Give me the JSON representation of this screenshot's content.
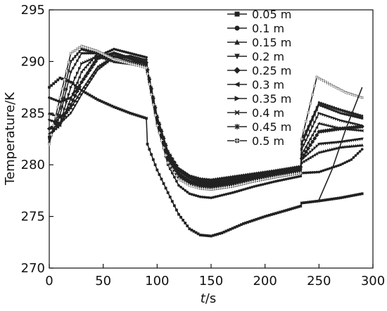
{
  "chart_data": {
    "type": "line",
    "xlabel_italic": "t",
    "xlabel_unit": "/s",
    "ylabel": "Temperature/K",
    "xlim": [
      0,
      300
    ],
    "ylim": [
      270,
      295
    ],
    "xticks": [
      0,
      50,
      100,
      150,
      200,
      250,
      300
    ],
    "yticks": [
      270,
      275,
      280,
      285,
      290,
      295
    ],
    "grid": false,
    "legend_position": "top-right",
    "line_color": "#222222",
    "series": [
      {
        "name": "0.05 m",
        "marker": "square",
        "points": [
          [
            0,
            287.5
          ],
          [
            10,
            288.4
          ],
          [
            20,
            288
          ],
          [
            30,
            287.2
          ],
          [
            45,
            286.3
          ],
          [
            60,
            285.6
          ],
          [
            75,
            285
          ],
          [
            90,
            284.5
          ],
          [
            91,
            282
          ],
          [
            100,
            279.5
          ],
          [
            110,
            277.3
          ],
          [
            120,
            275.2
          ],
          [
            130,
            273.8
          ],
          [
            140,
            273.2
          ],
          [
            150,
            273.1
          ],
          [
            160,
            273.4
          ],
          [
            180,
            274.3
          ],
          [
            200,
            275
          ],
          [
            220,
            275.6
          ],
          [
            233,
            276
          ],
          [
            234,
            276.3
          ],
          [
            250,
            276.5
          ],
          [
            270,
            276.8
          ],
          [
            290,
            277.2
          ]
        ]
      },
      {
        "name": "0.1 m",
        "marker": "circle",
        "points": [
          [
            0,
            286.5
          ],
          [
            10,
            286.1
          ],
          [
            20,
            286.5
          ],
          [
            30,
            288
          ],
          [
            45,
            290.5
          ],
          [
            60,
            291.2
          ],
          [
            75,
            290.8
          ],
          [
            90,
            290.4
          ],
          [
            91,
            289
          ],
          [
            100,
            284
          ],
          [
            110,
            280
          ],
          [
            120,
            278
          ],
          [
            130,
            277.2
          ],
          [
            140,
            276.9
          ],
          [
            150,
            276.8
          ],
          [
            170,
            277.3
          ],
          [
            190,
            277.9
          ],
          [
            210,
            278.4
          ],
          [
            233,
            278.9
          ],
          [
            234,
            279.2
          ],
          [
            250,
            279.3
          ],
          [
            270,
            280
          ],
          [
            280,
            280.5
          ],
          [
            290,
            281.5
          ]
        ]
      },
      {
        "name": "0.15 m",
        "marker": "triangle-up",
        "points": [
          [
            0,
            285
          ],
          [
            10,
            284.6
          ],
          [
            20,
            285.5
          ],
          [
            30,
            287.2
          ],
          [
            45,
            289.5
          ],
          [
            60,
            290.5
          ],
          [
            75,
            290.4
          ],
          [
            90,
            289.8
          ],
          [
            91,
            289
          ],
          [
            100,
            284.5
          ],
          [
            110,
            281
          ],
          [
            120,
            279.2
          ],
          [
            130,
            278.4
          ],
          [
            140,
            278.1
          ],
          [
            150,
            278
          ],
          [
            170,
            278.3
          ],
          [
            190,
            278.8
          ],
          [
            210,
            279.2
          ],
          [
            233,
            279.6
          ],
          [
            234,
            280.2
          ],
          [
            250,
            281.2
          ],
          [
            270,
            281.7
          ],
          [
            290,
            281.9
          ]
        ]
      },
      {
        "name": "0.2 m",
        "marker": "triangle-down",
        "points": [
          [
            0,
            284.3
          ],
          [
            10,
            284
          ],
          [
            20,
            285
          ],
          [
            30,
            286.8
          ],
          [
            45,
            289.2
          ],
          [
            60,
            290.4
          ],
          [
            75,
            290.5
          ],
          [
            90,
            290.1
          ],
          [
            91,
            289.3
          ],
          [
            100,
            284.7
          ],
          [
            110,
            281.3
          ],
          [
            120,
            279.5
          ],
          [
            130,
            278.7
          ],
          [
            140,
            278.3
          ],
          [
            150,
            278.2
          ],
          [
            170,
            278.5
          ],
          [
            190,
            279
          ],
          [
            210,
            279.3
          ],
          [
            233,
            279.7
          ],
          [
            234,
            280.5
          ],
          [
            250,
            282
          ],
          [
            270,
            282.2
          ],
          [
            290,
            282.5
          ]
        ]
      },
      {
        "name": "0.25 m",
        "marker": "diamond",
        "points": [
          [
            0,
            283.5
          ],
          [
            10,
            284
          ],
          [
            20,
            285.8
          ],
          [
            30,
            288
          ],
          [
            45,
            290.3
          ],
          [
            60,
            290.8
          ],
          [
            75,
            290.3
          ],
          [
            90,
            289.9
          ],
          [
            91,
            289.2
          ],
          [
            100,
            284.6
          ],
          [
            110,
            281.2
          ],
          [
            120,
            279.6
          ],
          [
            130,
            278.9
          ],
          [
            140,
            278.6
          ],
          [
            150,
            278.5
          ],
          [
            170,
            278.8
          ],
          [
            190,
            279.1
          ],
          [
            210,
            279.4
          ],
          [
            233,
            279.8
          ],
          [
            234,
            280.6
          ],
          [
            250,
            283.2
          ],
          [
            270,
            283.5
          ],
          [
            290,
            283.7
          ]
        ]
      },
      {
        "name": "0.3 m",
        "marker": "triangle-left",
        "points": [
          [
            0,
            283
          ],
          [
            10,
            283.8
          ],
          [
            20,
            286.4
          ],
          [
            30,
            289
          ],
          [
            45,
            290.8
          ],
          [
            60,
            290.5
          ],
          [
            75,
            290
          ],
          [
            90,
            289.8
          ],
          [
            91,
            289.1
          ],
          [
            100,
            284.4
          ],
          [
            110,
            281
          ],
          [
            120,
            279.4
          ],
          [
            130,
            278.7
          ],
          [
            140,
            278.4
          ],
          [
            150,
            278.3
          ],
          [
            170,
            278.6
          ],
          [
            190,
            279
          ],
          [
            210,
            279.3
          ],
          [
            233,
            279.7
          ],
          [
            234,
            281
          ],
          [
            250,
            284
          ],
          [
            270,
            283.5
          ],
          [
            290,
            283.3
          ]
        ]
      },
      {
        "name": "0.35 m",
        "marker": "triangle-right",
        "points": [
          [
            0,
            282.7
          ],
          [
            10,
            284
          ],
          [
            20,
            287.5
          ],
          [
            30,
            289.8
          ],
          [
            45,
            290.5
          ],
          [
            60,
            290
          ],
          [
            75,
            289.8
          ],
          [
            90,
            289.6
          ],
          [
            91,
            289
          ],
          [
            100,
            284.3
          ],
          [
            110,
            280.8
          ],
          [
            120,
            279.2
          ],
          [
            130,
            278.5
          ],
          [
            140,
            278.2
          ],
          [
            150,
            278.1
          ],
          [
            170,
            278.4
          ],
          [
            190,
            278.9
          ],
          [
            210,
            279.2
          ],
          [
            233,
            279.6
          ],
          [
            234,
            281.5
          ],
          [
            250,
            285
          ],
          [
            270,
            284.3
          ],
          [
            290,
            283.8
          ]
        ]
      },
      {
        "name": "0.4 m",
        "marker": "cross",
        "points": [
          [
            0,
            282.5
          ],
          [
            10,
            284.8
          ],
          [
            20,
            289
          ],
          [
            30,
            290.8
          ],
          [
            45,
            290.8
          ],
          [
            60,
            290
          ],
          [
            75,
            289.8
          ],
          [
            90,
            289.6
          ],
          [
            91,
            289
          ],
          [
            100,
            284.1
          ],
          [
            110,
            280.6
          ],
          [
            120,
            279
          ],
          [
            130,
            278.3
          ],
          [
            140,
            278
          ],
          [
            150,
            277.9
          ],
          [
            170,
            278.2
          ],
          [
            190,
            278.7
          ],
          [
            210,
            279.1
          ],
          [
            233,
            279.5
          ],
          [
            234,
            282
          ],
          [
            250,
            285.8
          ],
          [
            270,
            285
          ],
          [
            290,
            284.5
          ]
        ]
      },
      {
        "name": "0.45 m",
        "marker": "star",
        "points": [
          [
            0,
            282.2
          ],
          [
            10,
            285.5
          ],
          [
            20,
            290
          ],
          [
            30,
            291.2
          ],
          [
            45,
            290.8
          ],
          [
            60,
            290
          ],
          [
            75,
            289.8
          ],
          [
            90,
            289.5
          ],
          [
            91,
            289
          ],
          [
            100,
            284
          ],
          [
            110,
            280.5
          ],
          [
            120,
            278.9
          ],
          [
            130,
            278.2
          ],
          [
            140,
            277.9
          ],
          [
            150,
            277.8
          ],
          [
            170,
            278.1
          ],
          [
            190,
            278.6
          ],
          [
            210,
            279
          ],
          [
            233,
            279.4
          ],
          [
            234,
            282.3
          ],
          [
            250,
            286
          ],
          [
            270,
            285.3
          ],
          [
            290,
            284.7
          ]
        ]
      },
      {
        "name": "0.5 m",
        "marker": "circle-star",
        "points": [
          [
            0,
            282
          ],
          [
            10,
            286.5
          ],
          [
            20,
            290.8
          ],
          [
            30,
            291.5
          ],
          [
            45,
            291
          ],
          [
            60,
            290.2
          ],
          [
            75,
            289.8
          ],
          [
            90,
            289.4
          ],
          [
            91,
            288.8
          ],
          [
            100,
            283.8
          ],
          [
            110,
            280.2
          ],
          [
            120,
            278.6
          ],
          [
            130,
            278
          ],
          [
            140,
            277.7
          ],
          [
            150,
            277.6
          ],
          [
            170,
            277.9
          ],
          [
            190,
            278.4
          ],
          [
            210,
            278.8
          ],
          [
            233,
            279.2
          ],
          [
            234,
            282.5
          ],
          [
            248,
            288.5
          ],
          [
            260,
            287.8
          ],
          [
            275,
            287
          ],
          [
            290,
            286.5
          ]
        ]
      }
    ],
    "extra_rising_line": {
      "points": [
        [
          250,
          276.6
        ],
        [
          262,
          279.5
        ],
        [
          275,
          283.5
        ],
        [
          290,
          287.5
        ]
      ]
    }
  }
}
